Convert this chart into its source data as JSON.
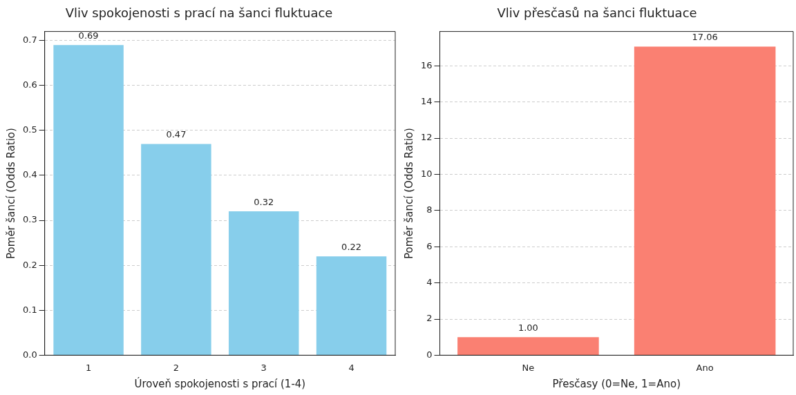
{
  "chart_data": [
    {
      "type": "bar",
      "title": "Vliv spokojenosti s prací na šanci fluktuace",
      "xlabel": "Úroveň spokojenosti s prací (1-4)",
      "ylabel": "Poměr šancí (Odds Ratio)",
      "categories": [
        "1",
        "2",
        "3",
        "4"
      ],
      "series": [
        {
          "color": "#87ceeb",
          "values": [
            0.69,
            0.47,
            0.32,
            0.22
          ],
          "value_labels": [
            "0.69",
            "0.47",
            "0.32",
            "0.22"
          ]
        }
      ],
      "ylim": [
        0,
        0.72
      ],
      "yticks": [
        {
          "value": 0,
          "label": "0.0"
        },
        0.1,
        0.2,
        0.3,
        0.4,
        0.5,
        0.6,
        0.7
      ],
      "grid": "y",
      "legend": false
    },
    {
      "type": "bar",
      "title": "Vliv přesčasů na šanci fluktuace",
      "xlabel": "Přesčasy (0=Ne, 1=Ano)",
      "ylabel": "Poměr šancí (Odds Ratio)",
      "categories": [
        "Ne",
        "Ano"
      ],
      "series": [
        {
          "color": "#fa8072",
          "values": [
            1.0,
            17.06
          ],
          "value_labels": [
            "1.00",
            "17.06"
          ]
        }
      ],
      "ylim": [
        0,
        17.9
      ],
      "yticks": [
        0,
        2,
        4,
        6,
        8,
        10,
        12,
        14,
        16
      ],
      "grid": "y",
      "legend": false
    }
  ]
}
